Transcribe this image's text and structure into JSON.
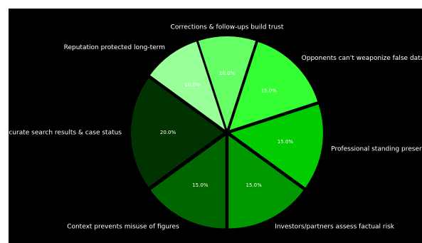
{
  "chart_data": {
    "type": "pie",
    "title": "",
    "slices": [
      {
        "label": "Corrections & follow-ups build trust",
        "value": 10.0,
        "display": "10.0%",
        "color": "#66ff66",
        "exploded": true
      },
      {
        "label": "Reputation protected long-term",
        "value": 10.0,
        "display": "10.0%",
        "color": "#99ff99",
        "exploded": true
      },
      {
        "label": "Accurate search results & case status",
        "value": 20.0,
        "display": "20.0%",
        "color": "#003300",
        "exploded": true
      },
      {
        "label": "Context prevents misuse of figures",
        "value": 15.0,
        "display": "15.0%",
        "color": "#006600",
        "exploded": true
      },
      {
        "label": "Investors/partners assess factual risk",
        "value": 15.0,
        "display": "15.0%",
        "color": "#009900",
        "exploded": true
      },
      {
        "label": "Professional standing preserved",
        "value": 15.0,
        "display": "15.0%",
        "color": "#00cc00",
        "exploded": true
      },
      {
        "label": "Opponents can't weaponize false data",
        "value": 15.0,
        "display": "15.0%",
        "color": "#33ff33",
        "exploded": true
      }
    ],
    "start_angle_deg": 72,
    "direction": "counterclockwise",
    "background": "#000000",
    "text_color": "#ffffff"
  }
}
